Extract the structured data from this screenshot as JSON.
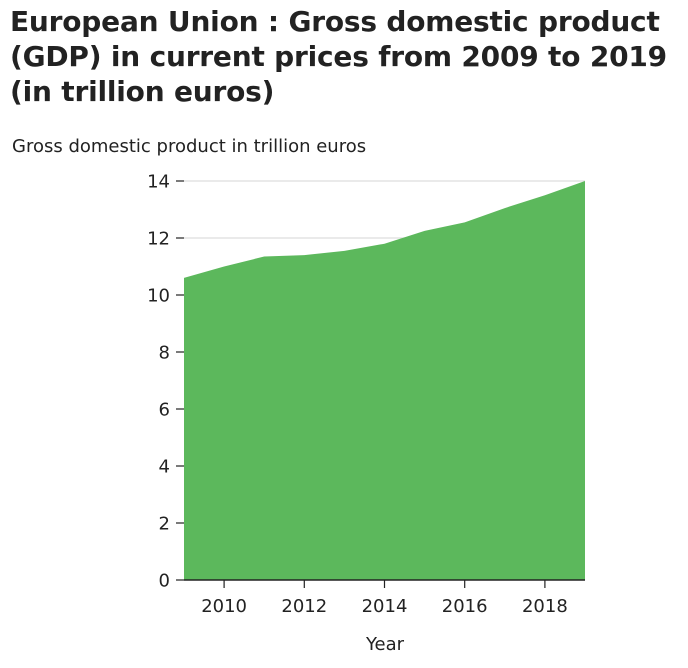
{
  "chart_data": {
    "type": "area",
    "title": "European Union : Gross domestic product (GDP) in current prices from 2009 to 2019 (in trillion euros)",
    "xlabel": "Year",
    "ylabel": "Gross domestic product in trillion euros",
    "x": [
      2009,
      2010,
      2011,
      2012,
      2013,
      2014,
      2015,
      2016,
      2017,
      2018,
      2019
    ],
    "series": [
      {
        "values": [
          10.6,
          11.0,
          11.35,
          11.4,
          11.55,
          11.8,
          12.25,
          12.55,
          13.05,
          13.5,
          14.0
        ],
        "color": "#5cb85c"
      }
    ],
    "xlim": [
      2009,
      2019
    ],
    "ylim": [
      0,
      14
    ],
    "xticks": [
      2010,
      2012,
      2014,
      2016,
      2018
    ],
    "yticks": [
      0,
      2,
      4,
      6,
      8,
      10,
      12,
      14
    ],
    "grid": true,
    "grid_color": "#dddddd",
    "axis_color": "#222222"
  }
}
